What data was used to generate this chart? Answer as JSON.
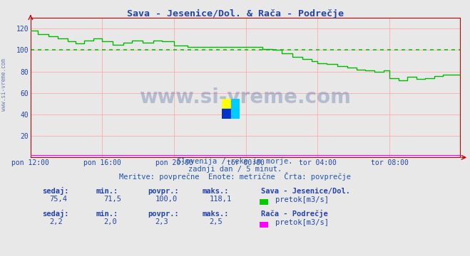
{
  "title": "Sava - Jesenice/Dol. & Rača - Podrečje",
  "title_color": "#2244aa",
  "bg_color": "#e8e8e8",
  "plot_bg_color": "#e8e8e8",
  "grid_color": "#ffaaaa",
  "x_tick_labels": [
    "pon 12:00",
    "pon 16:00",
    "pon 20:00",
    "tor 00:00",
    "tor 04:00",
    "tor 08:00"
  ],
  "x_tick_positions": [
    0,
    48,
    96,
    144,
    192,
    240
  ],
  "ylim": [
    0,
    130
  ],
  "xlim": [
    0,
    287
  ],
  "y_ticks": [
    20,
    40,
    60,
    80,
    100,
    120
  ],
  "avg_line_value": 100.0,
  "avg_line_color": "#00cc00",
  "line1_color": "#00bb00",
  "line2_color": "#ff00ff",
  "watermark": "www.si-vreme.com",
  "watermark_color": "#1a3a8a",
  "watermark_alpha": 0.25,
  "subtitle1": "Slovenija / reke in morje.",
  "subtitle2": "zadnji dan / 5 minut.",
  "subtitle3": "Meritve: povprečne  Enote: metrične  Črta: povprečje",
  "subtitle_color": "#2255aa",
  "legend1_label": "Sava - Jesenice/Dol.",
  "legend1_sub": "pretok[m3/s]",
  "legend1_color": "#00cc00",
  "legend2_label": "Rača - Podrečje",
  "legend2_sub": "pretok[m3/s]",
  "legend2_color": "#ff00ff",
  "stat1_sedaj": "75,4",
  "stat1_min": "71,5",
  "stat1_povpr": "100,0",
  "stat1_maks": "118,1",
  "stat2_sedaj": "2,2",
  "stat2_min": "2,0",
  "stat2_povpr": "2,3",
  "stat2_maks": "2,5",
  "stat_label_color": "#2244aa",
  "spine_color": "#cc0000",
  "left_label": "www.si-vreme.com",
  "logo_colors": [
    "#ffff00",
    "#00ccff",
    "#0033cc",
    "#00ccff"
  ]
}
